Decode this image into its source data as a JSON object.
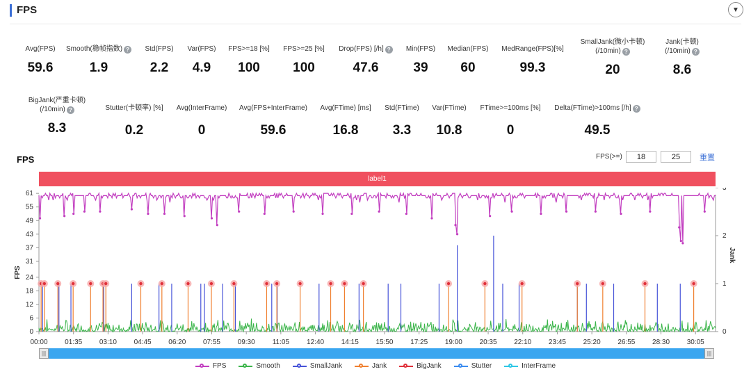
{
  "header": {
    "title": "FPS"
  },
  "metrics": [
    {
      "label": "Avg(FPS)",
      "value": "59.6"
    },
    {
      "label": "Smooth(稳帧指数)",
      "value": "1.9",
      "help": true
    },
    {
      "label": "Std(FPS)",
      "value": "2.2"
    },
    {
      "label": "Var(FPS)",
      "value": "4.9"
    },
    {
      "label": "FPS>=18 [%]",
      "value": "100"
    },
    {
      "label": "FPS>=25 [%]",
      "value": "100"
    },
    {
      "label": "Drop(FPS) [/h]",
      "value": "47.6",
      "help": true
    },
    {
      "label": "Min(FPS)",
      "value": "39"
    },
    {
      "label": "Median(FPS)",
      "value": "60"
    },
    {
      "label": "MedRange(FPS)[%]",
      "value": "99.3"
    },
    {
      "label": "SmallJank(微小卡顿)",
      "label2": "(/10min)",
      "value": "20",
      "help": true
    },
    {
      "label": "Jank(卡顿)",
      "label2": "(/10min)",
      "value": "8.6",
      "help": true
    },
    {
      "label": "BigJank(严重卡顿)",
      "label2": "(/10min)",
      "value": "8.3",
      "help": true
    },
    {
      "label": "Stutter(卡顿率) [%]",
      "value": "0.2"
    },
    {
      "label": "Avg(InterFrame)",
      "value": "0"
    },
    {
      "label": "Avg(FPS+InterFrame)",
      "value": "59.6"
    },
    {
      "label": "Avg(FTime) [ms]",
      "value": "16.8"
    },
    {
      "label": "Std(FTime)",
      "value": "3.3"
    },
    {
      "label": "Var(FTime)",
      "value": "10.8"
    },
    {
      "label": "FTime>=100ms [%]",
      "value": "0"
    },
    {
      "label": "Delta(FTime)>100ms [/h]",
      "value": "49.5",
      "help": true
    }
  ],
  "chart_section": {
    "title": "FPS",
    "threshold_label": "FPS(>=)",
    "threshold_1": "18",
    "threshold_2": "25",
    "reset_label": "重置",
    "band_label": "label1"
  },
  "chart_data": {
    "type": "line",
    "x_ticks": [
      "00:00",
      "01:35",
      "03:10",
      "04:45",
      "06:20",
      "07:55",
      "09:30",
      "11:05",
      "12:40",
      "14:15",
      "15:50",
      "17:25",
      "19:00",
      "20:35",
      "22:10",
      "23:45",
      "25:20",
      "26:55",
      "28:30",
      "30:05"
    ],
    "x_range_seconds": [
      0,
      1860
    ],
    "y_left_label": "FPS",
    "y_left_ticks": [
      0,
      6,
      12,
      18,
      24,
      31,
      37,
      43,
      49,
      55,
      61
    ],
    "y_left_range": [
      0,
      63.5
    ],
    "y_right_label": "Jank",
    "y_right_ticks": [
      0,
      1,
      2,
      3
    ],
    "y_right_range": [
      0,
      3
    ],
    "series": [
      {
        "name": "FPS",
        "color": "#c23ec0",
        "baseline": 60,
        "dips": [
          {
            "t": 3,
            "v": 50
          },
          {
            "t": 70,
            "v": 51
          },
          {
            "t": 95,
            "v": 52
          },
          {
            "t": 125,
            "v": 53
          },
          {
            "t": 168,
            "v": 53
          },
          {
            "t": 255,
            "v": 54
          },
          {
            "t": 300,
            "v": 52
          },
          {
            "t": 345,
            "v": 52
          },
          {
            "t": 400,
            "v": 51
          },
          {
            "t": 475,
            "v": 50
          },
          {
            "t": 490,
            "v": 47
          },
          {
            "t": 550,
            "v": 53
          },
          {
            "t": 620,
            "v": 52
          },
          {
            "t": 700,
            "v": 53
          },
          {
            "t": 780,
            "v": 52
          },
          {
            "t": 860,
            "v": 52
          },
          {
            "t": 935,
            "v": 53
          },
          {
            "t": 1010,
            "v": 52
          },
          {
            "t": 1080,
            "v": 50
          },
          {
            "t": 1145,
            "v": 47
          },
          {
            "t": 1150,
            "v": 43
          },
          {
            "t": 1240,
            "v": 51
          },
          {
            "t": 1300,
            "v": 53
          },
          {
            "t": 1380,
            "v": 52
          },
          {
            "t": 1450,
            "v": 53
          },
          {
            "t": 1530,
            "v": 53
          },
          {
            "t": 1600,
            "v": 52
          },
          {
            "t": 1680,
            "v": 53
          },
          {
            "t": 1760,
            "v": 46
          },
          {
            "t": 1765,
            "v": 40
          },
          {
            "t": 1770,
            "v": 39
          },
          {
            "t": 1830,
            "v": 53
          }
        ]
      },
      {
        "name": "Smooth",
        "color": "#3bb54a"
      },
      {
        "name": "SmallJank",
        "color": "#4653d8",
        "spikes": [
          {
            "t": 10,
            "v": 1
          },
          {
            "t": 55,
            "v": 1
          },
          {
            "t": 88,
            "v": 1
          },
          {
            "t": 178,
            "v": 1
          },
          {
            "t": 255,
            "v": 1
          },
          {
            "t": 330,
            "v": 1
          },
          {
            "t": 365,
            "v": 1
          },
          {
            "t": 445,
            "v": 1
          },
          {
            "t": 455,
            "v": 1
          },
          {
            "t": 505,
            "v": 1
          },
          {
            "t": 540,
            "v": 1
          },
          {
            "t": 640,
            "v": 1
          },
          {
            "t": 655,
            "v": 1
          },
          {
            "t": 770,
            "v": 1
          },
          {
            "t": 880,
            "v": 1
          },
          {
            "t": 960,
            "v": 1
          },
          {
            "t": 995,
            "v": 1
          },
          {
            "t": 1100,
            "v": 1
          },
          {
            "t": 1150,
            "v": 1.8
          },
          {
            "t": 1250,
            "v": 2
          },
          {
            "t": 1275,
            "v": 1
          },
          {
            "t": 1320,
            "v": 1
          },
          {
            "t": 1480,
            "v": 1
          },
          {
            "t": 1505,
            "v": 1
          },
          {
            "t": 1580,
            "v": 1
          },
          {
            "t": 1700,
            "v": 1
          },
          {
            "t": 1763,
            "v": 1
          }
        ]
      },
      {
        "name": "Jank",
        "color": "#f08030"
      },
      {
        "name": "BigJank",
        "color": "#e0303a",
        "markers": [
          6,
          15,
          52,
          94,
          142,
          176,
          184,
          280,
          338,
          410,
          474,
          536,
          626,
          654,
          718,
          802,
          840,
          892,
          1126,
          1226,
          1328,
          1480,
          1550,
          1666,
          1800
        ]
      },
      {
        "name": "Stutter",
        "color": "#3b8cf0"
      },
      {
        "name": "InterFrame",
        "color": "#2ec7e6"
      }
    ]
  }
}
